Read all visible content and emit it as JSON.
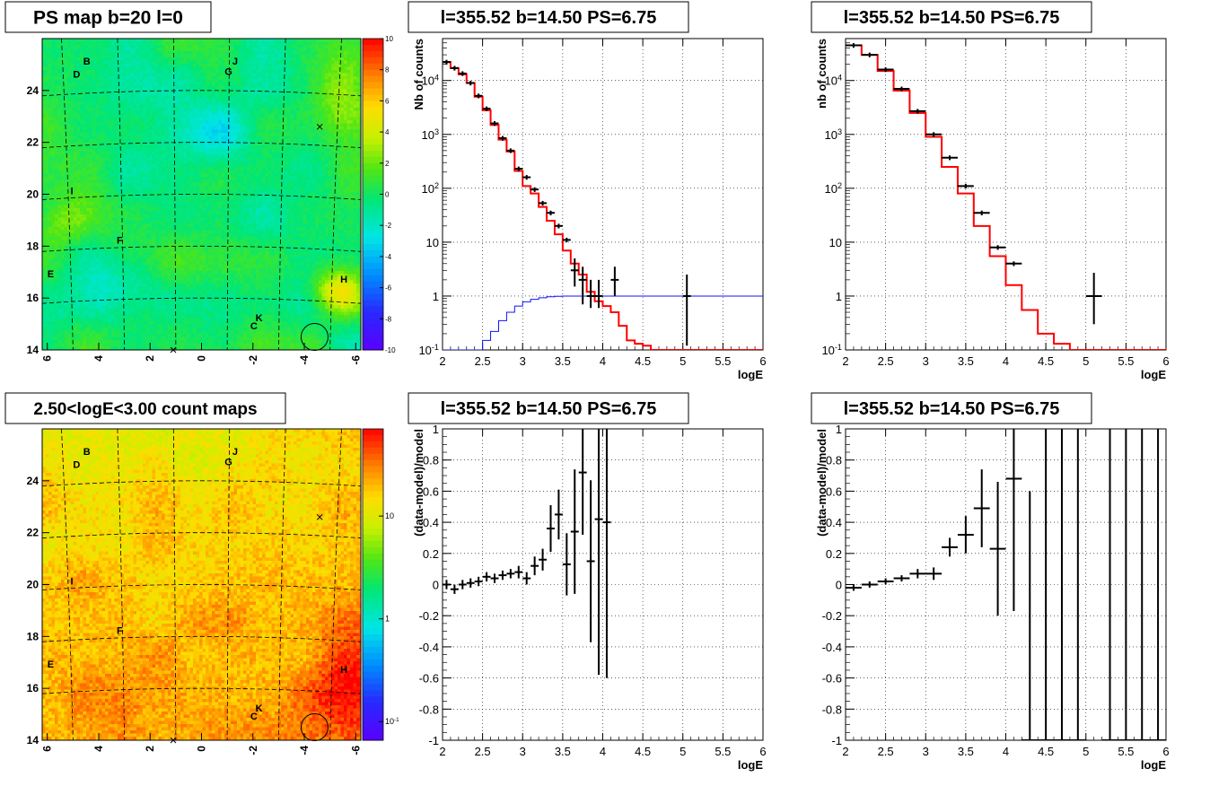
{
  "chart_data": [
    {
      "id": "ps-map",
      "type": "heatmap",
      "title": "PS map b=20 l=0",
      "x_ticks": [
        "6",
        "4",
        "2",
        "0",
        "-2",
        "-4",
        "-6"
      ],
      "y_ticks": [
        "14",
        "16",
        "18",
        "20",
        "22",
        "24"
      ],
      "xlim": [
        6.2,
        -6.2
      ],
      "ylim": [
        14,
        26
      ],
      "colorbar_ticks": [
        "10",
        "8",
        "6",
        "4",
        "2",
        "0",
        "-2",
        "-4",
        "-6",
        "-8",
        "-10"
      ],
      "colorbar_range": [
        -10,
        10
      ],
      "labels": [
        {
          "text": "B",
          "x": 4.6,
          "y": 25.0
        },
        {
          "text": "D",
          "x": 5.0,
          "y": 24.5
        },
        {
          "text": "J",
          "x": -1.2,
          "y": 25.0
        },
        {
          "text": "G",
          "x": -0.9,
          "y": 24.6
        },
        {
          "text": "I",
          "x": 5.1,
          "y": 20.0
        },
        {
          "text": "F",
          "x": 3.3,
          "y": 18.1
        },
        {
          "text": "E",
          "x": 6.0,
          "y": 16.8
        },
        {
          "text": "H",
          "x": -5.4,
          "y": 16.6
        },
        {
          "text": "K",
          "x": -2.1,
          "y": 15.1
        },
        {
          "text": "C",
          "x": -1.9,
          "y": 14.8
        }
      ],
      "markers": [
        {
          "symbol": "x",
          "x": -4.6,
          "y": 22.6
        },
        {
          "symbol": "x",
          "x": 1.1,
          "y": 14.0
        },
        {
          "symbol": "circle",
          "x": -4.4,
          "y": 14.5
        }
      ]
    },
    {
      "id": "count-map",
      "type": "heatmap",
      "title": "2.50<logE<3.00 count maps",
      "x_ticks": [
        "6",
        "4",
        "2",
        "0",
        "-2",
        "-4",
        "-6"
      ],
      "y_ticks": [
        "14",
        "16",
        "18",
        "20",
        "22",
        "24"
      ],
      "xlim": [
        6.2,
        -6.2
      ],
      "ylim": [
        14,
        26
      ],
      "colorbar_ticks": [
        "10",
        "1",
        "10^-1"
      ],
      "colorbar_scale": "log",
      "labels": [
        {
          "text": "B",
          "x": 4.6,
          "y": 25.0
        },
        {
          "text": "D",
          "x": 5.0,
          "y": 24.5
        },
        {
          "text": "J",
          "x": -1.2,
          "y": 25.0
        },
        {
          "text": "G",
          "x": -0.9,
          "y": 24.6
        },
        {
          "text": "I",
          "x": 5.1,
          "y": 20.0
        },
        {
          "text": "F",
          "x": 3.3,
          "y": 18.1
        },
        {
          "text": "E",
          "x": 6.0,
          "y": 16.8
        },
        {
          "text": "H",
          "x": -5.4,
          "y": 16.6
        },
        {
          "text": "K",
          "x": -2.1,
          "y": 15.1
        },
        {
          "text": "C",
          "x": -1.9,
          "y": 14.8
        }
      ],
      "markers": [
        {
          "symbol": "x",
          "x": -4.6,
          "y": 22.6
        },
        {
          "symbol": "x",
          "x": 1.1,
          "y": 14.0
        },
        {
          "symbol": "circle",
          "x": -4.4,
          "y": 14.5
        }
      ]
    },
    {
      "id": "spectrum-1",
      "type": "line",
      "title": "l=355.52 b=14.50 PS=6.75",
      "xlabel": "logE",
      "ylabel": "Nb of counts",
      "xlim": [
        2,
        6
      ],
      "ylim": [
        0.1,
        60000
      ],
      "yscale": "log",
      "grid": true,
      "x_ticks": [
        "2",
        "2.5",
        "3",
        "3.5",
        "4",
        "4.5",
        "5",
        "5.5",
        "6"
      ],
      "y_ticks": [
        {
          "v": 0.1,
          "t": "10^-1"
        },
        {
          "v": 1,
          "t": "1"
        },
        {
          "v": 10,
          "t": "10"
        },
        {
          "v": 100,
          "t": "10^2"
        },
        {
          "v": 1000,
          "t": "10^3"
        },
        {
          "v": 10000,
          "t": "10^4"
        }
      ],
      "step_edges": [
        2.0,
        2.1,
        2.2,
        2.3,
        2.4,
        2.5,
        2.6,
        2.7,
        2.8,
        2.9,
        3.0,
        3.1,
        3.2,
        3.3,
        3.4,
        3.5,
        3.6,
        3.7,
        3.8,
        3.9,
        4.0,
        4.1,
        4.2,
        4.3,
        4.4,
        4.5,
        4.6,
        6.0
      ],
      "model": [
        22000,
        17000,
        13000,
        9000,
        5000,
        2800,
        1500,
        800,
        480,
        210,
        110,
        80,
        45,
        25,
        14,
        7,
        4,
        2.5,
        1.2,
        0.8,
        0.65,
        0.5,
        0.28,
        0.15,
        0.13,
        0.12,
        0.1
      ],
      "efficiency_edges": [
        2.0,
        2.5,
        2.6,
        2.7,
        2.8,
        2.9,
        3.0,
        3.1,
        3.2,
        3.3,
        3.4,
        3.5,
        6.0
      ],
      "efficiency": [
        0.1,
        0.15,
        0.22,
        0.35,
        0.5,
        0.65,
        0.78,
        0.87,
        0.93,
        0.97,
        0.99,
        1.0
      ],
      "points": [
        {
          "x": 2.05,
          "y": 22000
        },
        {
          "x": 2.15,
          "y": 17000
        },
        {
          "x": 2.25,
          "y": 13500
        },
        {
          "x": 2.35,
          "y": 9000
        },
        {
          "x": 2.45,
          "y": 5200
        },
        {
          "x": 2.55,
          "y": 3000
        },
        {
          "x": 2.65,
          "y": 1600
        },
        {
          "x": 2.75,
          "y": 850
        },
        {
          "x": 2.85,
          "y": 500
        },
        {
          "x": 2.95,
          "y": 230
        },
        {
          "x": 3.05,
          "y": 160
        },
        {
          "x": 3.15,
          "y": 95
        },
        {
          "x": 3.25,
          "y": 53
        },
        {
          "x": 3.35,
          "y": 35
        },
        {
          "x": 3.45,
          "y": 20
        },
        {
          "x": 3.55,
          "y": 11
        },
        {
          "x": 3.65,
          "y": 3,
          "lo": 1.5,
          "hi": 5
        },
        {
          "x": 3.75,
          "y": 2,
          "lo": 0.7,
          "hi": 3.5
        },
        {
          "x": 3.85,
          "y": 1,
          "lo": 0.6,
          "hi": 2
        },
        {
          "x": 3.95,
          "y": 1,
          "lo": 0.6,
          "hi": 2
        },
        {
          "x": 4.15,
          "y": 2,
          "lo": 1,
          "hi": 3.5
        },
        {
          "x": 5.05,
          "y": 1,
          "lo": 0.12,
          "hi": 2.5
        }
      ]
    },
    {
      "id": "spectrum-2",
      "type": "line",
      "title": "l=355.52 b=14.50 PS=6.75",
      "xlabel": "logE",
      "ylabel": "nb of counts",
      "xlim": [
        2,
        6
      ],
      "ylim": [
        0.1,
        60000
      ],
      "yscale": "log",
      "grid": true,
      "x_ticks": [
        "2",
        "2.5",
        "3",
        "3.5",
        "4",
        "4.5",
        "5",
        "5.5",
        "6"
      ],
      "y_ticks": [
        {
          "v": 0.1,
          "t": "10^-1"
        },
        {
          "v": 1,
          "t": "1"
        },
        {
          "v": 10,
          "t": "10"
        },
        {
          "v": 100,
          "t": "10^2"
        },
        {
          "v": 1000,
          "t": "10^3"
        },
        {
          "v": 10000,
          "t": "10^4"
        }
      ],
      "step_edges": [
        2.0,
        2.2,
        2.4,
        2.6,
        2.8,
        3.0,
        3.2,
        3.4,
        3.6,
        3.8,
        4.0,
        4.2,
        4.4,
        4.6,
        4.8,
        6.0
      ],
      "model": [
        45000,
        30000,
        15000,
        6500,
        2500,
        900,
        250,
        80,
        20,
        5.5,
        1.6,
        0.55,
        0.2,
        0.13,
        0.1
      ],
      "points": [
        {
          "x": 2.1,
          "y": 45000
        },
        {
          "x": 2.3,
          "y": 30000
        },
        {
          "x": 2.5,
          "y": 16000
        },
        {
          "x": 2.7,
          "y": 7000
        },
        {
          "x": 2.9,
          "y": 2700
        },
        {
          "x": 3.1,
          "y": 1000
        },
        {
          "x": 3.3,
          "y": 370
        },
        {
          "x": 3.5,
          "y": 110
        },
        {
          "x": 3.7,
          "y": 35
        },
        {
          "x": 3.9,
          "y": 8
        },
        {
          "x": 4.1,
          "y": 4
        },
        {
          "x": 5.1,
          "y": 1,
          "lo": 0.3,
          "hi": 2.7
        }
      ]
    },
    {
      "id": "residual-1",
      "type": "scatter",
      "title": "l=355.52 b=14.50 PS=6.75",
      "xlabel": "logE",
      "ylabel": "(data-model)/model",
      "xlim": [
        2,
        6
      ],
      "ylim": [
        -1,
        1
      ],
      "grid": true,
      "x_ticks": [
        "2",
        "2.5",
        "3",
        "3.5",
        "4",
        "4.5",
        "5",
        "5.5",
        "6"
      ],
      "y_ticks": [
        "-1",
        "-0.8",
        "-0.6",
        "-0.4",
        "-0.2",
        "0",
        "0.2",
        "0.4",
        "0.6",
        "0.8",
        "1"
      ],
      "x_halfwidth": 0.05,
      "points": [
        {
          "x": 2.05,
          "y": 0.0,
          "err": 0.03
        },
        {
          "x": 2.15,
          "y": -0.03,
          "err": 0.03
        },
        {
          "x": 2.25,
          "y": 0.0,
          "err": 0.03
        },
        {
          "x": 2.35,
          "y": 0.01,
          "err": 0.03
        },
        {
          "x": 2.45,
          "y": 0.02,
          "err": 0.03
        },
        {
          "x": 2.55,
          "y": 0.05,
          "err": 0.03
        },
        {
          "x": 2.65,
          "y": 0.04,
          "err": 0.03
        },
        {
          "x": 2.75,
          "y": 0.06,
          "err": 0.03
        },
        {
          "x": 2.85,
          "y": 0.07,
          "err": 0.03
        },
        {
          "x": 2.95,
          "y": 0.08,
          "err": 0.04
        },
        {
          "x": 3.05,
          "y": 0.04,
          "err": 0.04
        },
        {
          "x": 3.15,
          "y": 0.12,
          "err": 0.06
        },
        {
          "x": 3.25,
          "y": 0.16,
          "err": 0.07
        },
        {
          "x": 3.35,
          "y": 0.36,
          "err": 0.15
        },
        {
          "x": 3.45,
          "y": 0.45,
          "err": 0.16
        },
        {
          "x": 3.55,
          "y": 0.13,
          "err": 0.2
        },
        {
          "x": 3.65,
          "y": 0.34,
          "err": 0.4
        },
        {
          "x": 3.75,
          "y": 0.72,
          "err": 0.4
        },
        {
          "x": 3.85,
          "y": 0.15,
          "err": 0.52
        },
        {
          "x": 3.95,
          "y": 0.42,
          "err": 1.0
        },
        {
          "x": 4.05,
          "y": 0.4,
          "err": 1.0
        }
      ]
    },
    {
      "id": "residual-2",
      "type": "scatter",
      "title": "l=355.52 b=14.50 PS=6.75",
      "xlabel": "logE",
      "ylabel": "(data-model)/model",
      "xlim": [
        2,
        6
      ],
      "ylim": [
        -1,
        1
      ],
      "grid": true,
      "x_ticks": [
        "2",
        "2.5",
        "3",
        "3.5",
        "4",
        "4.5",
        "5",
        "5.5",
        "6"
      ],
      "y_ticks": [
        "-1",
        "-0.8",
        "-0.6",
        "-0.4",
        "-0.2",
        "0",
        "0.2",
        "0.4",
        "0.6",
        "0.8",
        "1"
      ],
      "x_halfwidth": 0.1,
      "points": [
        {
          "x": 2.1,
          "y": -0.02,
          "err": 0.02
        },
        {
          "x": 2.3,
          "y": 0.0,
          "err": 0.02
        },
        {
          "x": 2.5,
          "y": 0.02,
          "err": 0.02
        },
        {
          "x": 2.7,
          "y": 0.04,
          "err": 0.02
        },
        {
          "x": 2.9,
          "y": 0.07,
          "err": 0.03
        },
        {
          "x": 3.1,
          "y": 0.07,
          "err": 0.04
        },
        {
          "x": 3.3,
          "y": 0.24,
          "err": 0.06
        },
        {
          "x": 3.5,
          "y": 0.32,
          "err": 0.12
        },
        {
          "x": 3.7,
          "y": 0.49,
          "err": 0.25
        },
        {
          "x": 3.9,
          "y": 0.23,
          "err": 0.43
        },
        {
          "x": 4.1,
          "y": 0.68,
          "err": 0.85
        },
        {
          "x": 4.3,
          "y": -1.0,
          "err": 1.6
        },
        {
          "x": 4.5,
          "y": -1.0,
          "err": 2.0
        },
        {
          "x": 4.7,
          "y": -1.0,
          "err": 2.0
        },
        {
          "x": 4.9,
          "y": -1.0,
          "err": 2.0
        },
        {
          "x": 5.3,
          "y": -1.0,
          "err": 2.0
        },
        {
          "x": 5.5,
          "y": -1.0,
          "err": 2.0
        },
        {
          "x": 5.7,
          "y": -1.0,
          "err": 2.0
        },
        {
          "x": 5.9,
          "y": -1.0,
          "err": 2.0
        }
      ]
    }
  ]
}
